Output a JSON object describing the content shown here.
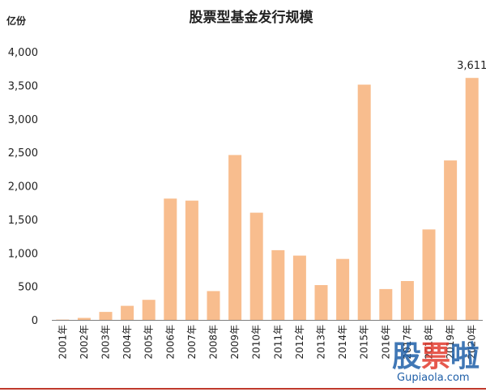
{
  "chart_data": {
    "type": "bar",
    "title": "股票型基金发行规模",
    "unit": "亿份",
    "categories": [
      "2001年",
      "2002年",
      "2003年",
      "2004年",
      "2005年",
      "2006年",
      "2007年",
      "2008年",
      "2009年",
      "2010年",
      "2011年",
      "2012年",
      "2013年",
      "2014年",
      "2015年",
      "2016年",
      "2017年",
      "2018年",
      "2019年",
      "2020年"
    ],
    "values": [
      5,
      30,
      120,
      210,
      300,
      1810,
      1780,
      430,
      2460,
      1600,
      1040,
      960,
      520,
      910,
      3510,
      460,
      580,
      1350,
      2380,
      3611
    ],
    "yticks": [
      "0",
      "500",
      "1,000",
      "1,500",
      "2,000",
      "2,500",
      "3,000",
      "3,500",
      "4,000"
    ],
    "ylim": [
      0,
      4000
    ],
    "data_labels": [
      {
        "index": 19,
        "text": "3,611"
      }
    ],
    "bar_color": "#f8bd8e",
    "grid": false,
    "legend": false
  },
  "watermark": {
    "text": "股票啦",
    "site": "Gupiaola.com",
    "accent": "#e23b2e",
    "blue": "#1f5fa8"
  }
}
